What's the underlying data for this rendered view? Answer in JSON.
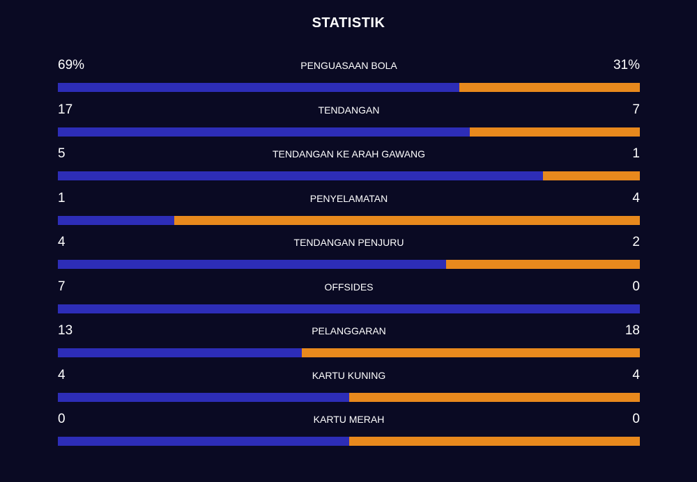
{
  "title": "STATISTIK",
  "colors": {
    "background": "#0a0a23",
    "home": "#2d2db7",
    "away": "#e8891d"
  },
  "stats": [
    {
      "label": "PENGUASAAN BOLA",
      "home": "69%",
      "away": "31%",
      "home_share": 0.69
    },
    {
      "label": "TENDANGAN",
      "home": "17",
      "away": "7",
      "home_share": 0.7083
    },
    {
      "label": "TENDANGAN KE ARAH GAWANG",
      "home": "5",
      "away": "1",
      "home_share": 0.8333
    },
    {
      "label": "PENYELAMATAN",
      "home": "1",
      "away": "4",
      "home_share": 0.2
    },
    {
      "label": "TENDANGAN PENJURU",
      "home": "4",
      "away": "2",
      "home_share": 0.6667
    },
    {
      "label": "OFFSIDES",
      "home": "7",
      "away": "0",
      "home_share": 1.0
    },
    {
      "label": "PELANGGARAN",
      "home": "13",
      "away": "18",
      "home_share": 0.4194
    },
    {
      "label": "KARTU KUNING",
      "home": "4",
      "away": "4",
      "home_share": 0.5
    },
    {
      "label": "KARTU MERAH",
      "home": "0",
      "away": "0",
      "home_share": 0.5
    }
  ]
}
